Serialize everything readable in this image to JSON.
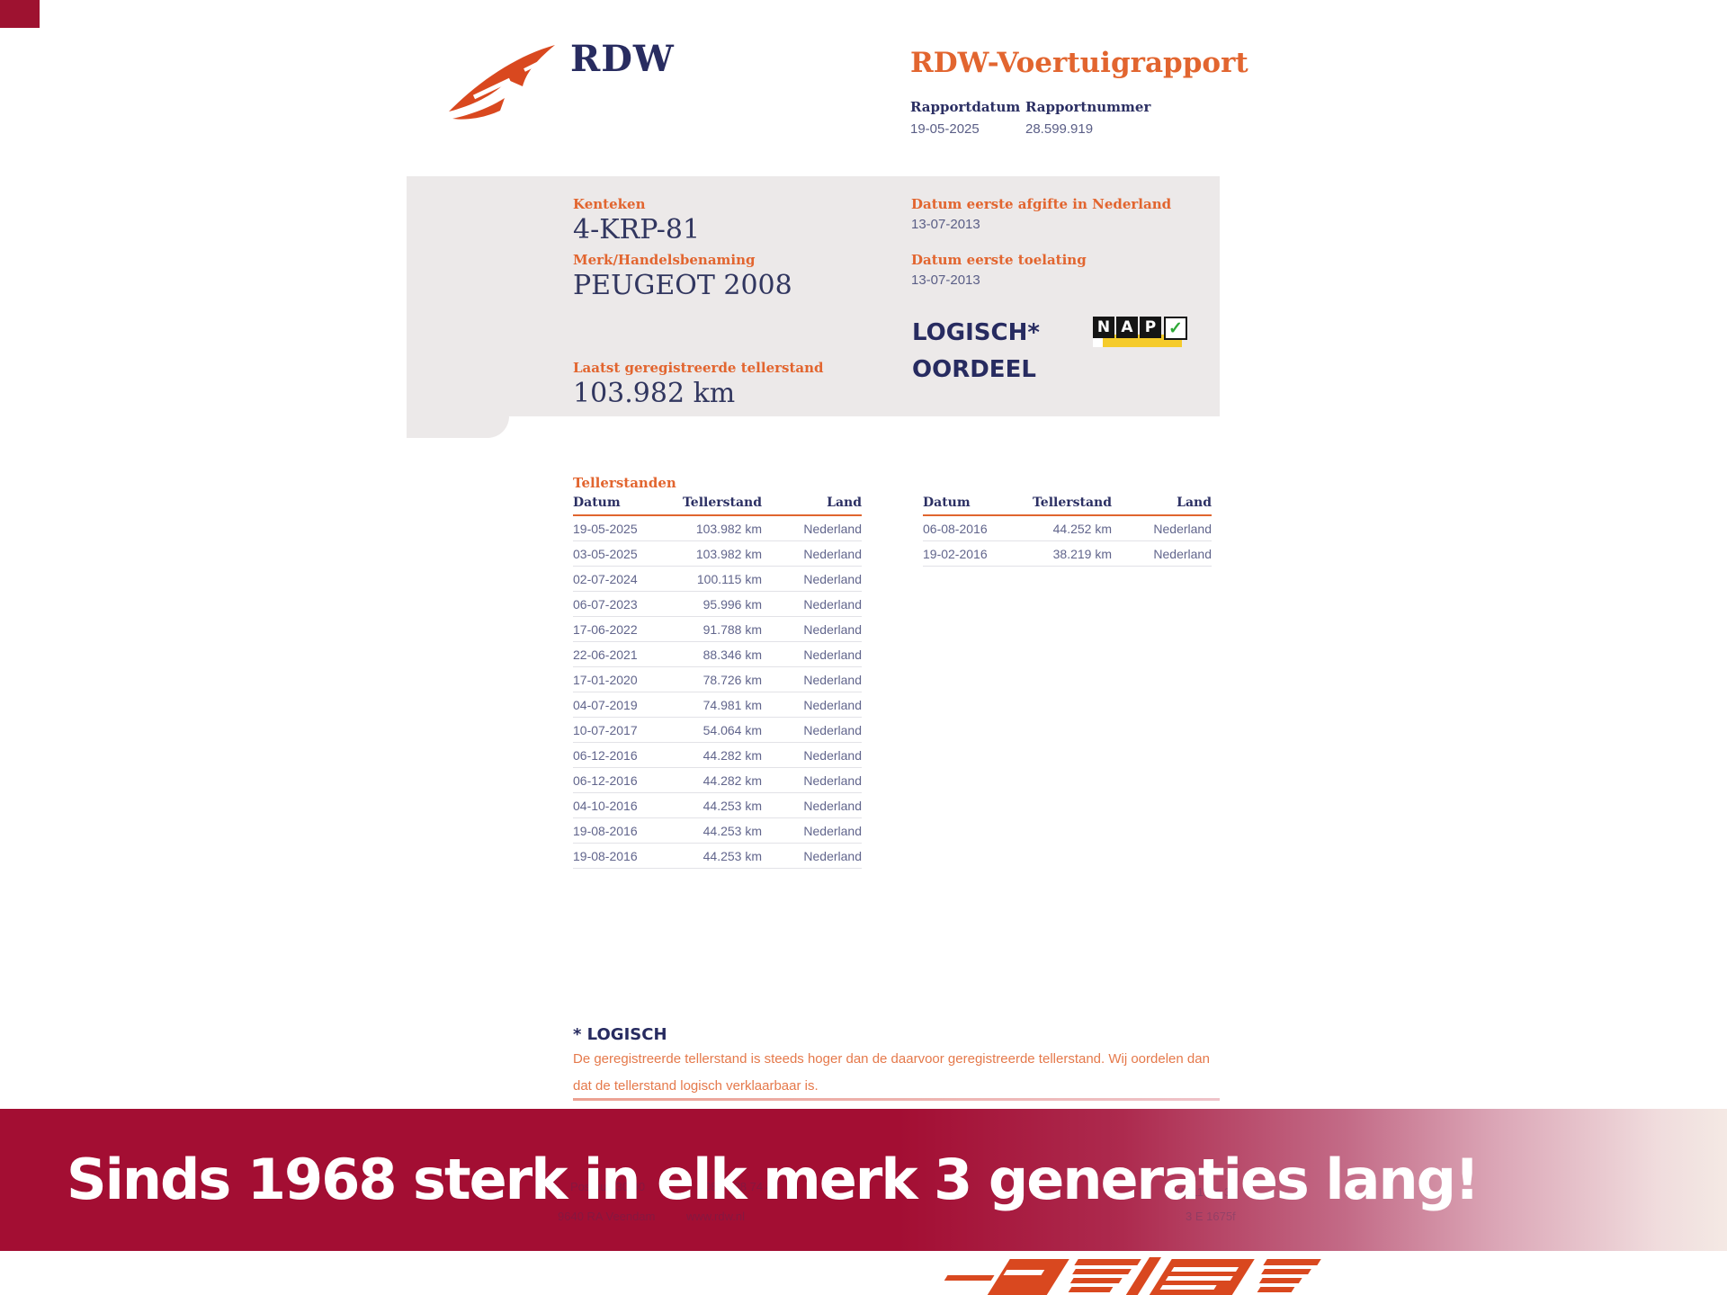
{
  "header": {
    "brand_wordmark": "RDW",
    "title": "RDW-Voertuigrapport",
    "rapportdatum_label": "Rapportdatum",
    "rapportdatum_value": "19-05-2025",
    "rapportnummer_label": "Rapportnummer",
    "rapportnummer_value": "28.599.919"
  },
  "vehicle_panel": {
    "kenteken_label": "Kenteken",
    "kenteken_value": "4-KRP-81",
    "merk_label": "Merk/Handelsbenaming",
    "merk_value": "PEUGEOT 2008",
    "laatste_tellerstand_label": "Laatst geregistreerde tellerstand",
    "laatste_tellerstand_value": "103.982 km",
    "afgifte_label": "Datum eerste afgifte in Nederland",
    "afgifte_value": "13-07-2013",
    "toelating_label": "Datum eerste toelating",
    "toelating_value": "13-07-2013",
    "oordeel_line1": "LOGISCH*",
    "oordeel_line2": "OORDEEL",
    "nap_logo": {
      "letters": [
        "N",
        "A",
        "P"
      ],
      "check": "✓"
    }
  },
  "tellerstanden": {
    "section_title": "Tellerstanden",
    "col_datum": "Datum",
    "col_tellerstand": "Tellerstand",
    "col_land": "Land",
    "table1_rows": [
      [
        "19-05-2025",
        "103.982 km",
        "Nederland"
      ],
      [
        "03-05-2025",
        "103.982 km",
        "Nederland"
      ],
      [
        "02-07-2024",
        "100.115 km",
        "Nederland"
      ],
      [
        "06-07-2023",
        "95.996 km",
        "Nederland"
      ],
      [
        "17-06-2022",
        "91.788 km",
        "Nederland"
      ],
      [
        "22-06-2021",
        "88.346 km",
        "Nederland"
      ],
      [
        "17-01-2020",
        "78.726 km",
        "Nederland"
      ],
      [
        "04-07-2019",
        "74.981 km",
        "Nederland"
      ],
      [
        "10-07-2017",
        "54.064 km",
        "Nederland"
      ],
      [
        "06-12-2016",
        "44.282 km",
        "Nederland"
      ],
      [
        "06-12-2016",
        "44.282 km",
        "Nederland"
      ],
      [
        "04-10-2016",
        "44.253 km",
        "Nederland"
      ],
      [
        "19-08-2016",
        "44.253 km",
        "Nederland"
      ],
      [
        "19-08-2016",
        "44.253 km",
        "Nederland"
      ]
    ],
    "table2_rows": [
      [
        "06-08-2016",
        "44.252 km",
        "Nederland"
      ],
      [
        "19-02-2016",
        "38.219 km",
        "Nederland"
      ]
    ]
  },
  "footnote": {
    "title": "* LOGISCH",
    "line1": "De geregistreerde tellerstand is steeds hoger dan de daarvoor geregistreerde tellerstand. Wij oordelen dan",
    "line2": "dat de tellerstand logisch verklaarbaar is."
  },
  "banner": {
    "headline": "Sinds 1968 sterk in elk merk 3 generaties lang!"
  },
  "faint_footer": {
    "address_line1": "Postbus 30 00",
    "address_line2": "9640 RA Veendam",
    "phone": "088 008 74 47",
    "website": "www.rdw.nl",
    "code1": "BW 11 ws 3",
    "code2": "3 E 1675f"
  },
  "colors": {
    "rdw_orange": "#e2652f",
    "navy": "#2b2f63",
    "panel_gray": "#ece9e9",
    "banner_red": "#a30e33",
    "nap_yellow": "#f5cb2b",
    "nap_green": "#2ea836",
    "dealer_logo_orange": "#d9481f"
  }
}
